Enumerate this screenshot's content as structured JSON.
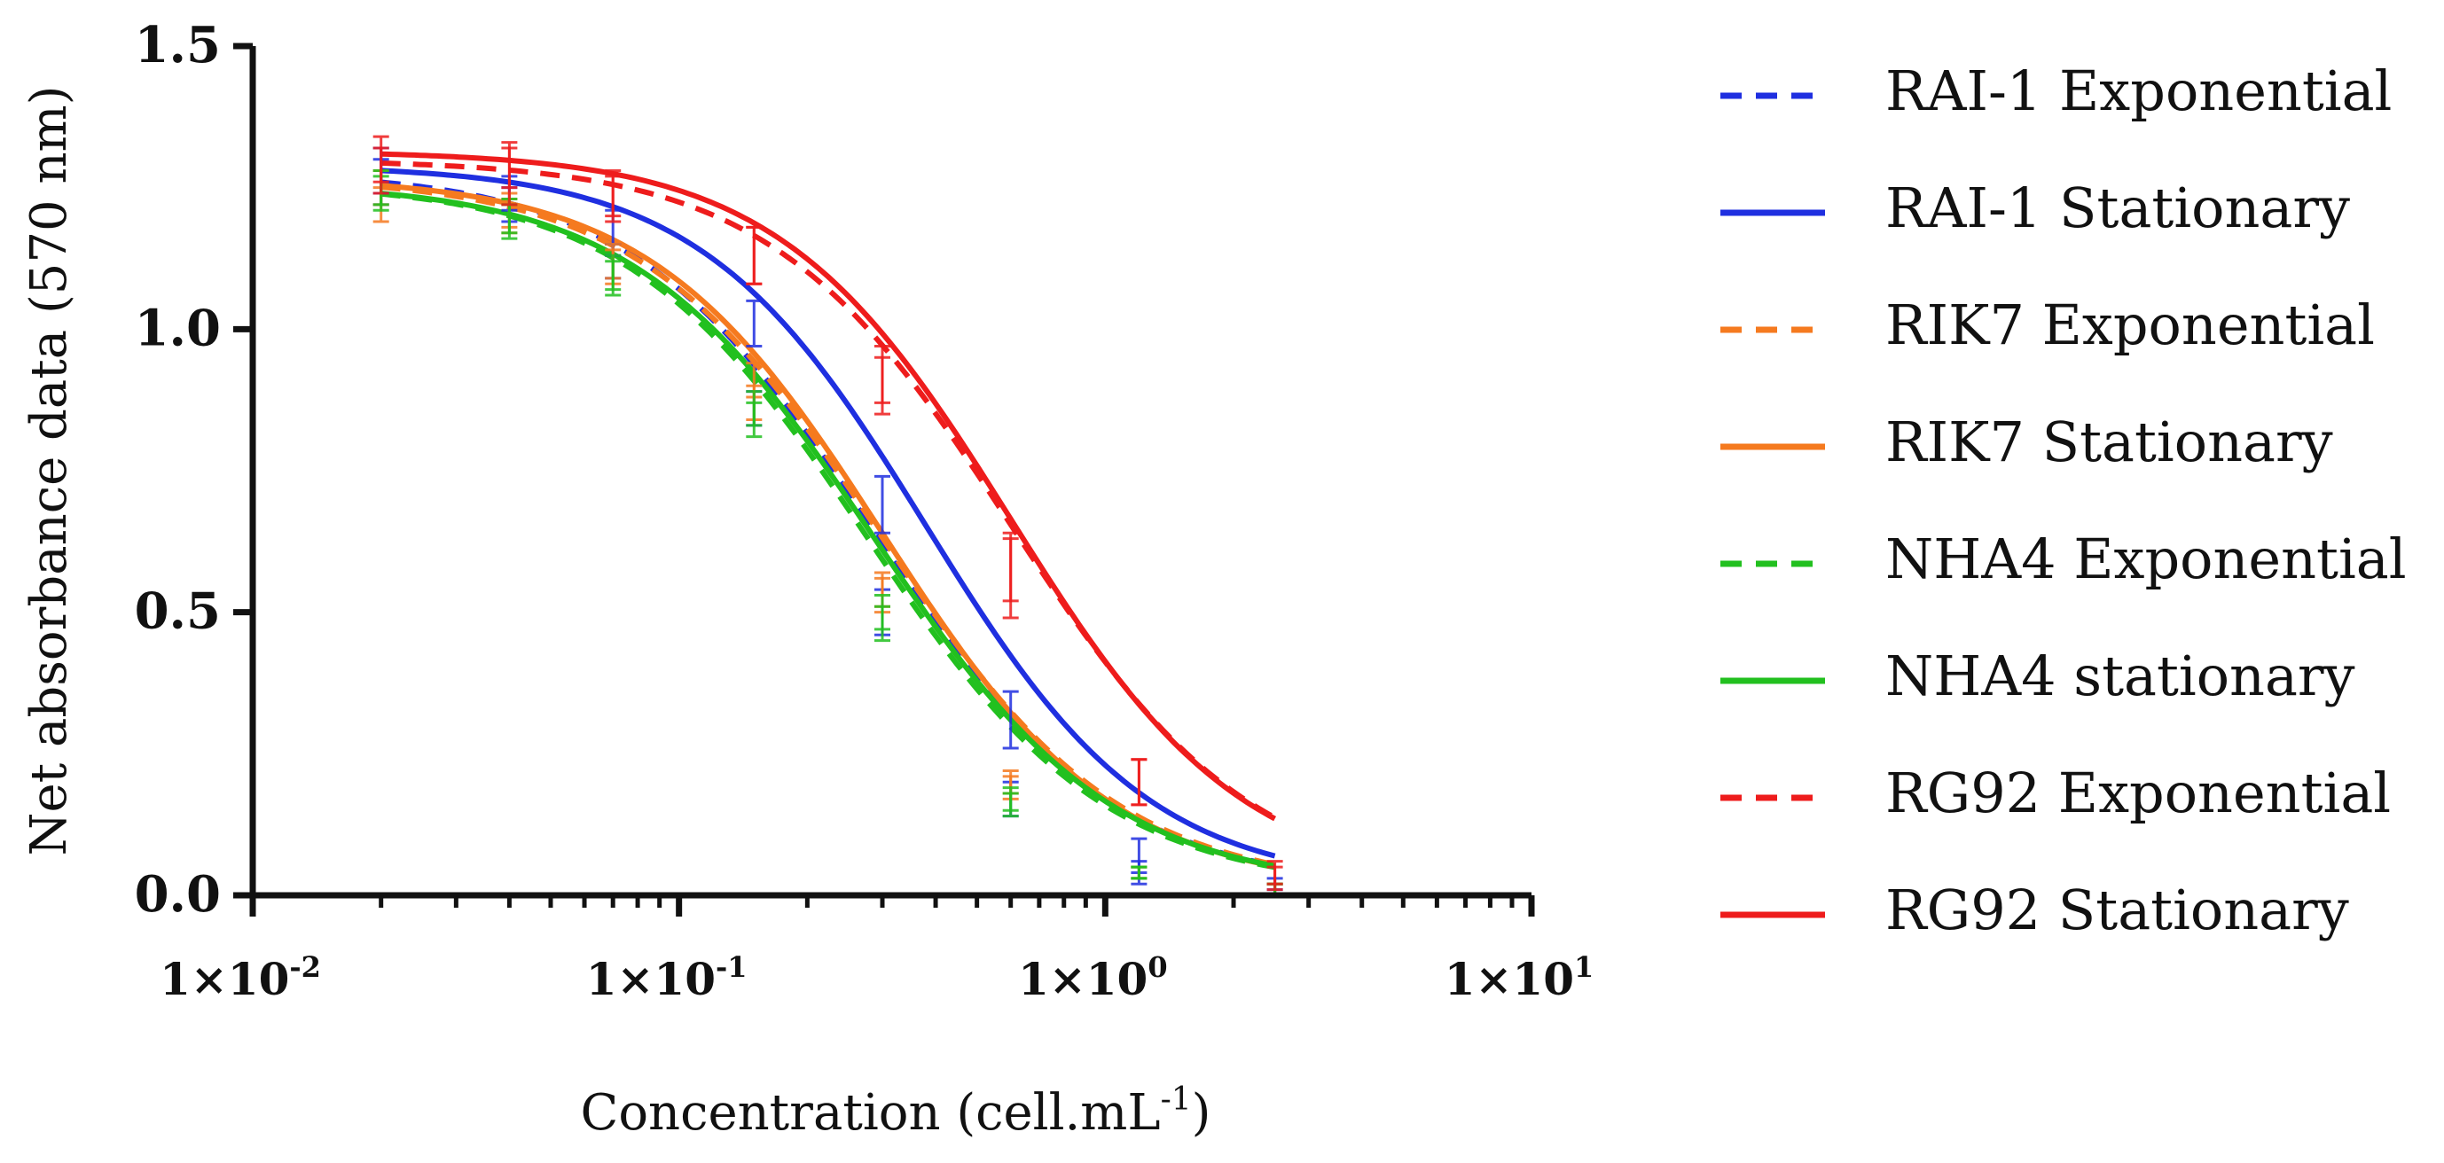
{
  "chart_data": {
    "type": "line",
    "title": "",
    "xlabel": "Concentration (cell.mL",
    "xlabel_sup": "-1",
    "xlabel_close": ")",
    "ylabel": "Net absorbance data (570 nm)",
    "x_scale": "log",
    "xlim": [
      0.01,
      10
    ],
    "ylim": [
      0,
      1.5
    ],
    "x_ticks": [
      {
        "value": 0.01,
        "base": "1×10",
        "exp": "-2"
      },
      {
        "value": 0.1,
        "base": "1×10",
        "exp": "-1"
      },
      {
        "value": 1,
        "base": "1×10",
        "exp": "0"
      },
      {
        "value": 10,
        "base": "1×10",
        "exp": "1"
      }
    ],
    "y_ticks": [
      {
        "value": 0.0,
        "label": "0.0"
      },
      {
        "value": 0.5,
        "label": "0.5"
      },
      {
        "value": 1.0,
        "label": "1.0"
      },
      {
        "value": 1.5,
        "label": "1.5"
      }
    ],
    "legend_position": "right",
    "x": [
      0.02,
      0.04,
      0.07,
      0.15,
      0.3,
      0.6,
      1.2,
      2.5
    ],
    "series": [
      {
        "name": "RAI-1 Exponential",
        "color": "#1f2fe0",
        "style": "dashed",
        "values": [
          1.26,
          1.22,
          1.12,
          0.86,
          0.5,
          0.17,
          0.04,
          0.01
        ],
        "errors": [
          0.04,
          0.03,
          0.03,
          0.03,
          0.04,
          0.03,
          0.02,
          0.01
        ],
        "fit": {
          "top": 1.28,
          "bottom": 0.01,
          "ec50": 0.285,
          "hill": 1.55
        }
      },
      {
        "name": "RAI-1 Stationary",
        "color": "#1f2fe0",
        "style": "solid",
        "values": [
          1.28,
          1.24,
          1.17,
          1.01,
          0.69,
          0.31,
          0.07,
          0.02
        ],
        "errors": [
          0.04,
          0.03,
          0.04,
          0.04,
          0.05,
          0.05,
          0.03,
          0.01
        ],
        "fit": {
          "top": 1.29,
          "bottom": 0.015,
          "ec50": 0.38,
          "hill": 1.65
        }
      },
      {
        "name": "RIK7 Exponential",
        "color": "#f57a1f",
        "style": "dashed",
        "values": [
          1.22,
          1.21,
          1.11,
          0.87,
          0.53,
          0.19,
          0.04,
          0.01
        ],
        "errors": [
          0.03,
          0.03,
          0.03,
          0.03,
          0.03,
          0.02,
          0.01,
          0.01
        ],
        "fit": {
          "top": 1.27,
          "bottom": 0.01,
          "ec50": 0.295,
          "hill": 1.55
        }
      },
      {
        "name": "RIK7 Stationary",
        "color": "#f57a1f",
        "style": "solid",
        "values": [
          1.25,
          1.2,
          1.12,
          0.91,
          0.54,
          0.2,
          0.04,
          0.01
        ],
        "errors": [
          0.03,
          0.03,
          0.03,
          0.03,
          0.03,
          0.02,
          0.01,
          0.01
        ],
        "fit": {
          "top": 1.27,
          "bottom": 0.01,
          "ec50": 0.3,
          "hill": 1.6
        }
      },
      {
        "name": "NHA4 Exponential",
        "color": "#22c01f",
        "style": "dashed",
        "values": [
          1.24,
          1.19,
          1.09,
          0.84,
          0.48,
          0.16,
          0.04,
          0.01
        ],
        "errors": [
          0.03,
          0.03,
          0.03,
          0.03,
          0.03,
          0.02,
          0.01,
          0.01
        ],
        "fit": {
          "top": 1.26,
          "bottom": 0.01,
          "ec50": 0.275,
          "hill": 1.55
        }
      },
      {
        "name": "NHA4 stationary",
        "color": "#22c01f",
        "style": "solid",
        "values": [
          1.25,
          1.2,
          1.1,
          0.86,
          0.5,
          0.17,
          0.04,
          0.01
        ],
        "errors": [
          0.03,
          0.03,
          0.03,
          0.03,
          0.03,
          0.02,
          0.01,
          0.01
        ],
        "fit": {
          "top": 1.26,
          "bottom": 0.01,
          "ec50": 0.285,
          "hill": 1.55
        }
      },
      {
        "name": "RG92 Exponential",
        "color": "#ee1c1c",
        "style": "dashed",
        "values": [
          1.28,
          1.27,
          1.23,
          1.13,
          0.9,
          0.56,
          0.2,
          0.03
        ],
        "errors": [
          0.04,
          0.05,
          0.04,
          0.05,
          0.05,
          0.07,
          0.04,
          0.02
        ],
        "fit": {
          "top": 1.3,
          "bottom": 0.01,
          "ec50": 0.6,
          "hill": 1.55
        }
      },
      {
        "name": "RG92 Stationary",
        "color": "#ee1c1c",
        "style": "solid",
        "values": [
          1.3,
          1.29,
          1.24,
          1.13,
          0.92,
          0.58,
          0.2,
          0.04
        ],
        "errors": [
          0.04,
          0.04,
          0.04,
          0.05,
          0.05,
          0.06,
          0.04,
          0.02
        ],
        "fit": {
          "top": 1.315,
          "bottom": 0.015,
          "ec50": 0.6,
          "hill": 1.6
        }
      }
    ]
  }
}
